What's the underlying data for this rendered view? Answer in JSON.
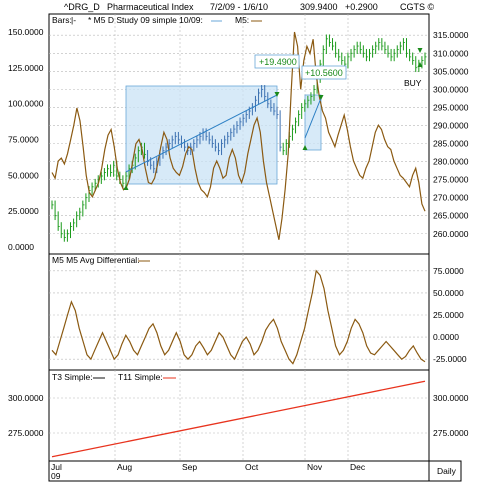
{
  "header": {
    "symbol": "^DRG_D",
    "name": "Pharmaceutical Index",
    "date_range": "7/2/09 - 1/6/10",
    "last": "309.9400",
    "change": "+0.2900",
    "copyright": "CGTS ©"
  },
  "chart_data": [
    {
      "type": "bar",
      "panel": "price",
      "legend": [
        "Bars:",
        "* M5 D Study 09 simple 10/09:",
        "M5:"
      ],
      "right_axis_ticks": [
        "315.0000",
        "310.0000",
        "305.0000",
        "300.0000",
        "295.0000",
        "290.0000",
        "285.0000",
        "280.0000",
        "275.0000",
        "270.0000",
        "265.0000",
        "260.0000"
      ],
      "left_axis_ticks": [
        "150.0000",
        "125.0000",
        "100.0000",
        "75.0000",
        "50.0000",
        "25.0000",
        "0.0000"
      ],
      "ylim_right": [
        255.5,
        317
      ],
      "ylim_left": [
        0,
        150
      ],
      "x_labels": [
        "Jul",
        "Aug",
        "Sep",
        "Oct",
        "Nov",
        "Dec"
      ],
      "x_sublabel": "09",
      "price_series": [
        268,
        265,
        262,
        260,
        259,
        260,
        262,
        263,
        265,
        266,
        268,
        270,
        272,
        273,
        274,
        275,
        276,
        277,
        278,
        277,
        279,
        276,
        275,
        274,
        276,
        278,
        279,
        281,
        283,
        284,
        282,
        280,
        279,
        278,
        280,
        282,
        283,
        284,
        285,
        286,
        287,
        286,
        285,
        284,
        283,
        284,
        285,
        286,
        287,
        288,
        287,
        286,
        285,
        284,
        283,
        285,
        286,
        287,
        288,
        289,
        290,
        291,
        292,
        293,
        294,
        295,
        297,
        299,
        300,
        298,
        296,
        295,
        294,
        293,
        284,
        283,
        285,
        287,
        289,
        291,
        293,
        295,
        296,
        297,
        298,
        300,
        303,
        307,
        311,
        314,
        313,
        312,
        310,
        309,
        308,
        307,
        309,
        310,
        311,
        312,
        311,
        310,
        309,
        310,
        311,
        312,
        313,
        312,
        311,
        310,
        309,
        310,
        311,
        312,
        313,
        310,
        309,
        308,
        306,
        307,
        308,
        309
      ],
      "osc_series": [
        52,
        48,
        60,
        62,
        58,
        65,
        75,
        85,
        97,
        88,
        70,
        50,
        38,
        35,
        40,
        45,
        55,
        68,
        78,
        82,
        70,
        55,
        45,
        40,
        42,
        48,
        60,
        72,
        75,
        68,
        55,
        45,
        44,
        48,
        58,
        70,
        80,
        75,
        62,
        55,
        52,
        50,
        56,
        65,
        70,
        68,
        55,
        45,
        40,
        38,
        35,
        42,
        55,
        60,
        55,
        48,
        50,
        62,
        68,
        62,
        50,
        45,
        52,
        65,
        75,
        85,
        90,
        80,
        60,
        45,
        35,
        25,
        15,
        5,
        20,
        40,
        65,
        110,
        150,
        140,
        110,
        130,
        140,
        135,
        145,
        120,
        105,
        95,
        90,
        80,
        75,
        70,
        78,
        85,
        92,
        82,
        70,
        60,
        55,
        50,
        48,
        55,
        60,
        70,
        80,
        85,
        82,
        75,
        70,
        68,
        60,
        55,
        50,
        48,
        45,
        42,
        50,
        55,
        45,
        30,
        25
      ],
      "annotations": [
        {
          "text": "+19.4900"
        },
        {
          "text": "+10.5600"
        },
        {
          "text": "BUY"
        }
      ]
    },
    {
      "type": "line",
      "panel": "oscillator",
      "legend": [
        "M5 M5 Avg Differential:"
      ],
      "right_axis_ticks": [
        "75.0000",
        "50.0000",
        "25.0000",
        "0.0000",
        "-25.0000"
      ],
      "ylim": [
        -35,
        85
      ],
      "series": [
        -15,
        -20,
        -5,
        10,
        25,
        40,
        30,
        10,
        -5,
        -20,
        -25,
        -15,
        -5,
        5,
        -5,
        -15,
        -25,
        -20,
        -8,
        2,
        -5,
        -15,
        -20,
        -10,
        0,
        10,
        15,
        5,
        -10,
        -20,
        -15,
        -5,
        5,
        -5,
        -20,
        -25,
        -20,
        -10,
        -5,
        -12,
        -20,
        -15,
        -5,
        5,
        0,
        -10,
        -20,
        -25,
        -15,
        -5,
        0,
        -8,
        -20,
        -15,
        -5,
        8,
        15,
        20,
        10,
        -5,
        -15,
        -25,
        -30,
        -20,
        -5,
        10,
        30,
        50,
        75,
        70,
        55,
        30,
        10,
        -10,
        -20,
        -15,
        -5,
        10,
        20,
        15,
        5,
        -10,
        -18,
        -20,
        -15,
        -10,
        -5,
        -10,
        -15,
        -20,
        -25,
        -22,
        -15,
        -10,
        -18,
        -25,
        -28
      ]
    },
    {
      "type": "line",
      "panel": "averages",
      "legend": [
        {
          "name": "T3 Simple:",
          "color": "#111111"
        },
        {
          "name": "T11 Simple:",
          "color": "#e8331e"
        }
      ],
      "right_axis_ticks": [
        "300.0000",
        "275.0000"
      ],
      "ylim": [
        255,
        320
      ],
      "t11_range": [
        258,
        312
      ]
    }
  ],
  "footer": {
    "period": "Daily"
  },
  "colors": {
    "oscillator": "#8b5a12",
    "price_bars_green": "#1a9a1a",
    "price_bars_blue": "#3a6fb0",
    "highlight_fill": "#c9e3f5",
    "highlight_stroke": "#6aa7d8",
    "trend_line": "#2c7fc4",
    "t11_line": "#e8331e"
  }
}
